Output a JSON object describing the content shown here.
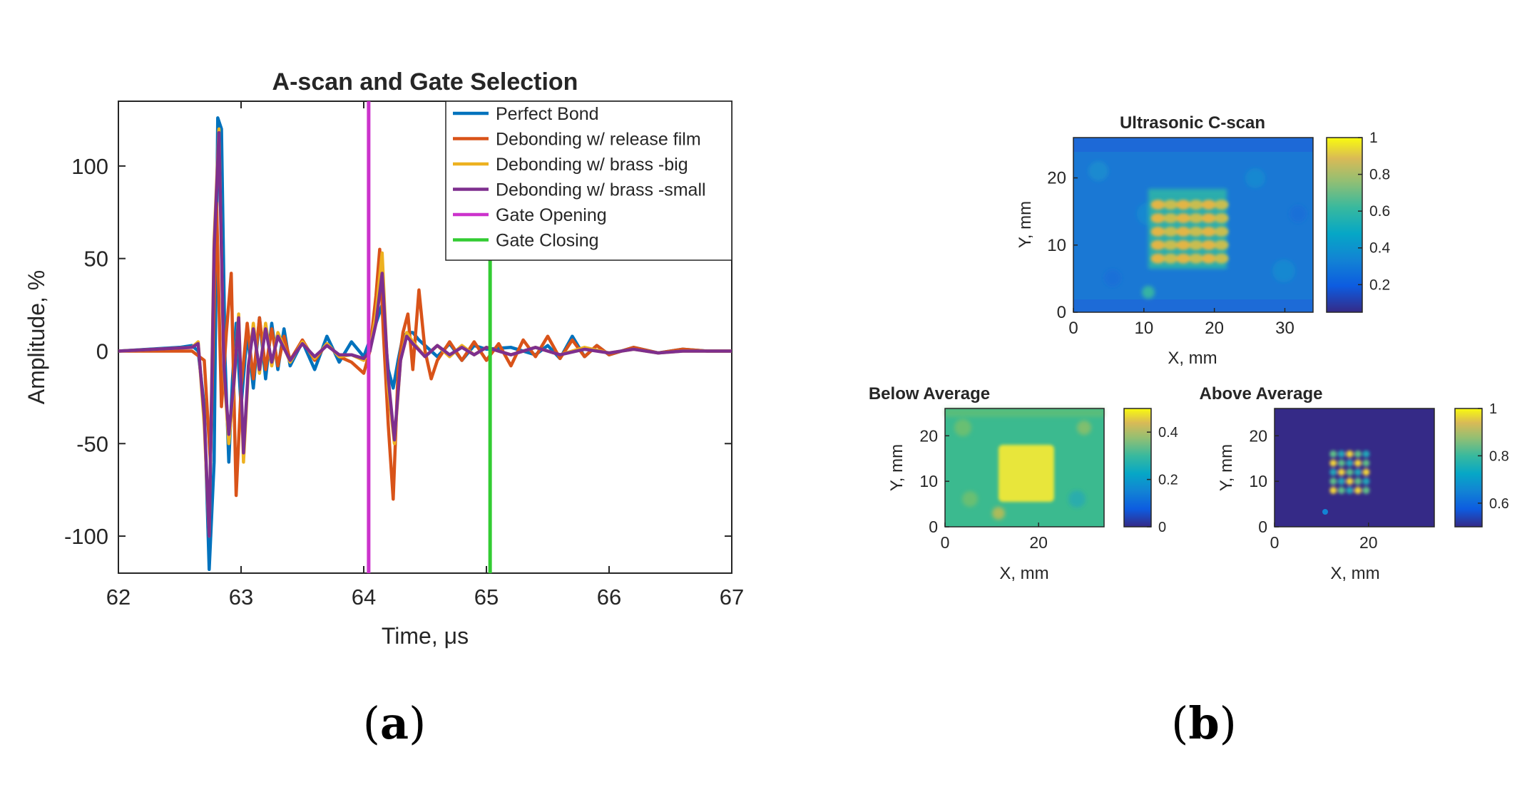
{
  "chart_data": [
    {
      "type": "line",
      "title": "A-scan and Gate Selection",
      "xlabel": "Time, μs",
      "ylabel": "Amplitude, %",
      "xlim": [
        62,
        67
      ],
      "ylim": [
        -120,
        135
      ],
      "xticks": [
        "62",
        "63",
        "64",
        "65",
        "66",
        "67"
      ],
      "yticks": [
        "-100",
        "-50",
        "0",
        "50",
        "100"
      ],
      "legend_position": "top-right",
      "series": [
        {
          "name": "Perfect Bond",
          "color": "#0072BD",
          "x": [
            62.0,
            62.5,
            62.6,
            62.65,
            62.7,
            62.74,
            62.78,
            62.81,
            62.84,
            62.87,
            62.9,
            62.93,
            62.96,
            63.0,
            63.05,
            63.1,
            63.15,
            63.2,
            63.25,
            63.3,
            63.35,
            63.4,
            63.5,
            63.6,
            63.7,
            63.8,
            63.9,
            64.0,
            64.05,
            64.1,
            64.15,
            64.2,
            64.24,
            64.28,
            64.32,
            64.36,
            64.4,
            64.45,
            64.5,
            64.6,
            64.7,
            64.8,
            64.9,
            65.0,
            65.2,
            65.4,
            65.5,
            65.6,
            65.7,
            65.8,
            65.9,
            66.0,
            66.2,
            66.4,
            66.6,
            66.8,
            67.0
          ],
          "y": [
            0,
            2,
            3,
            0,
            -30,
            -118,
            -60,
            126,
            120,
            -5,
            -60,
            -15,
            15,
            -30,
            10,
            -20,
            18,
            -15,
            15,
            -10,
            12,
            -8,
            5,
            -10,
            8,
            -6,
            5,
            -3,
            6,
            15,
            25,
            -10,
            -20,
            -5,
            8,
            10,
            10,
            6,
            3,
            -3,
            4,
            -5,
            3,
            1,
            2,
            -2,
            3,
            -4,
            8,
            -3,
            3,
            -2,
            2,
            -1,
            1,
            0,
            0
          ]
        },
        {
          "name": "Debonding w/ release film",
          "color": "#D95319",
          "x": [
            62.0,
            62.6,
            62.7,
            62.75,
            62.8,
            62.84,
            62.88,
            62.92,
            62.96,
            63.0,
            63.05,
            63.1,
            63.15,
            63.2,
            63.25,
            63.3,
            63.35,
            63.4,
            63.5,
            63.6,
            63.7,
            63.8,
            63.9,
            64.0,
            64.05,
            64.1,
            64.13,
            64.16,
            64.2,
            64.24,
            64.28,
            64.32,
            64.36,
            64.4,
            64.45,
            64.5,
            64.55,
            64.6,
            64.7,
            64.8,
            64.9,
            65.0,
            65.1,
            65.2,
            65.3,
            65.4,
            65.5,
            65.6,
            65.7,
            65.8,
            65.9,
            66.0,
            66.2,
            66.4,
            66.6,
            66.8,
            67.0
          ],
          "y": [
            0,
            0,
            -5,
            -60,
            80,
            -30,
            10,
            42,
            -78,
            -20,
            15,
            -15,
            18,
            -10,
            12,
            -8,
            8,
            -5,
            6,
            -5,
            4,
            -3,
            -6,
            -12,
            0,
            30,
            55,
            10,
            -40,
            -80,
            -10,
            10,
            20,
            -10,
            33,
            0,
            -15,
            -5,
            5,
            -5,
            5,
            -5,
            4,
            -8,
            6,
            -3,
            8,
            -4,
            6,
            -3,
            3,
            -2,
            2,
            -1,
            1,
            0,
            0
          ]
        },
        {
          "name": "Debonding w/ brass -big",
          "color": "#EDB120",
          "x": [
            62.0,
            62.6,
            62.65,
            62.7,
            62.74,
            62.78,
            62.82,
            62.86,
            62.9,
            62.94,
            62.98,
            63.02,
            63.06,
            63.1,
            63.15,
            63.2,
            63.25,
            63.3,
            63.4,
            63.5,
            63.6,
            63.7,
            63.8,
            63.9,
            64.0,
            64.05,
            64.1,
            64.15,
            64.2,
            64.25,
            64.3,
            64.35,
            64.4,
            64.5,
            64.6,
            64.7,
            64.8,
            64.9,
            65.0,
            65.2,
            65.4,
            65.6,
            65.8,
            66.0,
            66.2,
            66.4,
            66.6,
            66.8,
            67.0
          ],
          "y": [
            0,
            2,
            5,
            -40,
            -100,
            60,
            120,
            -10,
            -50,
            -20,
            20,
            -60,
            -10,
            15,
            -12,
            15,
            -8,
            10,
            -6,
            5,
            -4,
            4,
            -3,
            -2,
            -5,
            0,
            20,
            53,
            -20,
            -50,
            -5,
            10,
            5,
            -3,
            3,
            -3,
            3,
            -2,
            2,
            -2,
            2,
            -2,
            2,
            -1,
            1,
            -1,
            0,
            0,
            0
          ]
        },
        {
          "name": "Debonding w/ brass -small",
          "color": "#7E2F8E",
          "x": [
            62.0,
            62.6,
            62.65,
            62.7,
            62.74,
            62.78,
            62.82,
            62.86,
            62.9,
            62.94,
            62.98,
            63.02,
            63.06,
            63.1,
            63.15,
            63.2,
            63.25,
            63.3,
            63.4,
            63.5,
            63.6,
            63.7,
            63.8,
            63.9,
            64.0,
            64.05,
            64.1,
            64.15,
            64.2,
            64.25,
            64.3,
            64.35,
            64.4,
            64.5,
            64.6,
            64.7,
            64.8,
            64.9,
            65.0,
            65.2,
            65.4,
            65.6,
            65.8,
            66.0,
            66.2,
            66.4,
            66.6,
            66.8,
            67.0
          ],
          "y": [
            0,
            2,
            4,
            -35,
            -100,
            55,
            118,
            -8,
            -45,
            -18,
            18,
            -55,
            -8,
            12,
            -10,
            12,
            -6,
            8,
            -5,
            4,
            -3,
            3,
            -2,
            -2,
            -4,
            0,
            15,
            42,
            -15,
            -48,
            -5,
            8,
            4,
            -3,
            3,
            -2,
            2,
            -2,
            2,
            -2,
            2,
            -2,
            1,
            -1,
            1,
            -1,
            0,
            0,
            0
          ]
        }
      ],
      "vlines": [
        {
          "name": "Gate Opening",
          "x": 64.04,
          "color": "#CC33CC"
        },
        {
          "name": "Gate Closing",
          "x": 65.03,
          "color": "#33CC33"
        }
      ]
    },
    {
      "type": "heatmap",
      "title": "Ultrasonic C-scan",
      "xlabel": "X, mm",
      "ylabel": "Y, mm",
      "xlim": [
        0,
        34
      ],
      "ylim": [
        0,
        26
      ],
      "xticks": [
        "0",
        "10",
        "20",
        "30"
      ],
      "yticks": [
        "0",
        "10",
        "20"
      ],
      "colorbar": {
        "range": [
          0.05,
          1
        ],
        "ticks": [
          "0.2",
          "0.4",
          "0.6",
          "0.8",
          "1"
        ]
      },
      "defect_region": {
        "x": [
          11,
          22
        ],
        "y": [
          7,
          17
        ]
      }
    },
    {
      "type": "heatmap",
      "title": "Below Average",
      "xlabel": "X, mm",
      "ylabel": "Y, mm",
      "xlim": [
        0,
        34
      ],
      "ylim": [
        0,
        26
      ],
      "xticks": [
        "0",
        "20"
      ],
      "yticks": [
        "0",
        "10",
        "20"
      ],
      "colorbar": {
        "range": [
          0,
          0.5
        ],
        "ticks": [
          "0",
          "0.2",
          "0.4"
        ]
      },
      "defect_region": {
        "x": [
          11,
          22
        ],
        "y": [
          7,
          17
        ]
      }
    },
    {
      "type": "heatmap",
      "title": "Above Average",
      "xlabel": "X, mm",
      "ylabel": "Y, mm",
      "xlim": [
        0,
        34
      ],
      "ylim": [
        0,
        26
      ],
      "xticks": [
        "0",
        "20"
      ],
      "yticks": [
        "0",
        "10",
        "20"
      ],
      "colorbar": {
        "range": [
          0.5,
          1
        ],
        "ticks": [
          "0.6",
          "0.8",
          "1"
        ]
      },
      "defect_region": {
        "x": [
          11,
          22
        ],
        "y": [
          7,
          17
        ]
      }
    }
  ],
  "panel_labels": {
    "a": {
      "open": "(",
      "letter": "a",
      "close": ")"
    },
    "b": {
      "open": "(",
      "letter": "b",
      "close": ")"
    }
  }
}
